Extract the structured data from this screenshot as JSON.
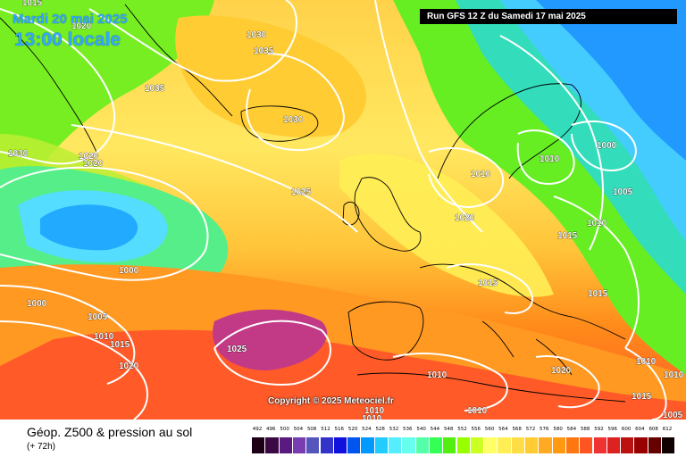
{
  "header": {
    "date": "Mardi 20 mai 2025",
    "local_time": "13:00 locale",
    "run": "Run GFS 12 Z du Samedi 17 mai 2025"
  },
  "map": {
    "copyright": "Copyright © 2025 Meteociel.fr",
    "pressure_labels": [
      "1015",
      "1020",
      "1030",
      "1035",
      "1035",
      "1030",
      "1030",
      "1020",
      "1020",
      "1025",
      "1000",
      "1000",
      "1005",
      "1010",
      "1015",
      "1020",
      "1025",
      "1010",
      "1010",
      "1020",
      "1015",
      "1000",
      "1005",
      "1010",
      "1015",
      "1015",
      "1020",
      "1010",
      "1010",
      "1005",
      "1015",
      "1010",
      "1010",
      "1010",
      "1010"
    ],
    "colors": {
      "ocean_land_fill": "geopotential shading",
      "isobar": "#ffffff",
      "coastline": "#000000"
    }
  },
  "footer": {
    "parameter": "Géop. Z500 & pression au sol",
    "lead_time": "(+ 72h)"
  },
  "legend": {
    "labels": [
      "492",
      "496",
      "500",
      "504",
      "508",
      "512",
      "516",
      "520",
      "524",
      "528",
      "532",
      "536",
      "540",
      "544",
      "548",
      "552",
      "556",
      "560",
      "564",
      "568",
      "572",
      "576",
      "580",
      "584",
      "588",
      "592",
      "596",
      "600",
      "604",
      "608",
      "612"
    ],
    "colors": [
      "#1e0016",
      "#3b0a45",
      "#5a1a80",
      "#7a3db0",
      "#5555bb",
      "#3333cc",
      "#1111dd",
      "#0055ee",
      "#0099ff",
      "#22ccff",
      "#55eeff",
      "#66ffee",
      "#55ffaa",
      "#33ff55",
      "#55ee11",
      "#99ff00",
      "#ccff22",
      "#ffff66",
      "#ffee55",
      "#ffdd44",
      "#ffcc33",
      "#ffaa22",
      "#ff9911",
      "#ff7711",
      "#ff5522",
      "#ee3333",
      "#dd2222",
      "#bb1111",
      "#990000",
      "#660000",
      "#110000"
    ]
  }
}
